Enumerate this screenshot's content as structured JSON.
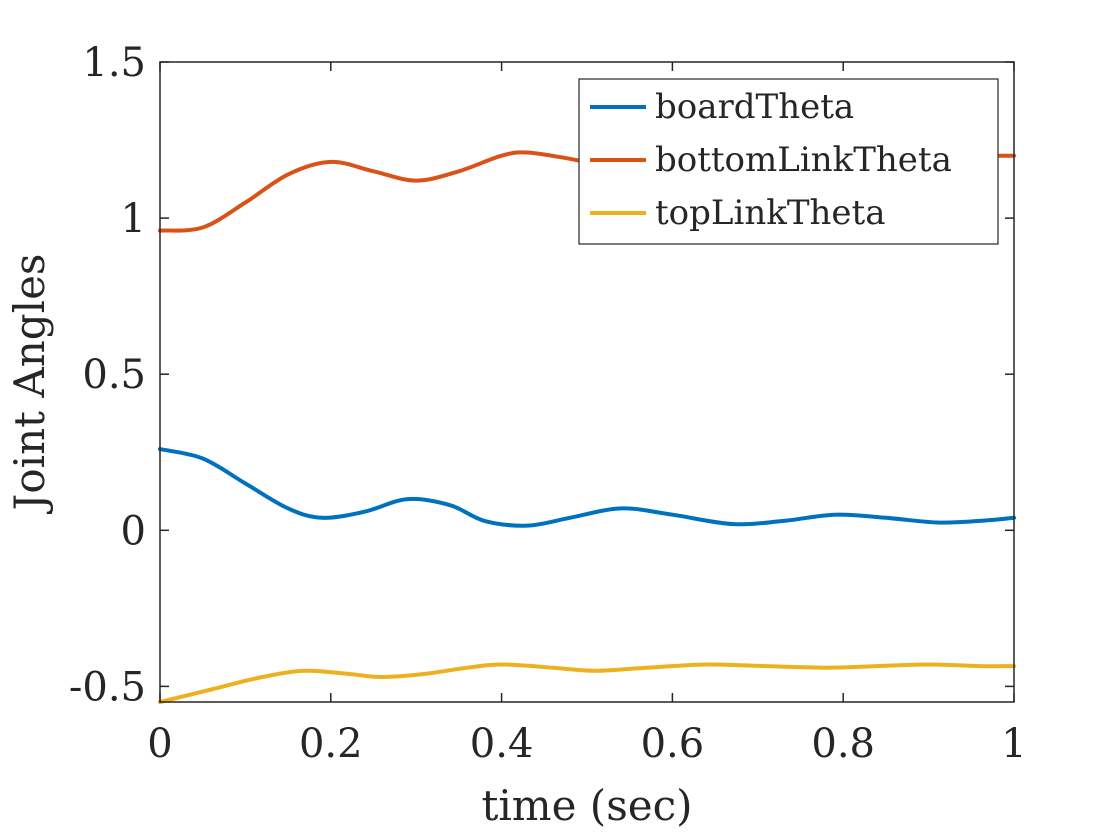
{
  "chart_data": {
    "type": "line",
    "xlabel": "time (sec)",
    "ylabel": "Joint Angles",
    "xlim": [
      0,
      1
    ],
    "ylim": [
      -0.55,
      1.5
    ],
    "xticks": [
      0,
      0.2,
      0.4,
      0.6,
      0.8,
      1
    ],
    "xtick_labels": [
      "0",
      "0.2",
      "0.4",
      "0.6",
      "0.8",
      "1"
    ],
    "yticks": [
      -0.5,
      0,
      0.5,
      1,
      1.5
    ],
    "ytick_labels": [
      "-0.5",
      "0",
      "0.5",
      "1",
      "1.5"
    ],
    "grid": false,
    "legend": "top-right",
    "series": [
      {
        "name": "boardTheta",
        "color": "#0072BD",
        "x": [
          0,
          0.05,
          0.1,
          0.15,
          0.19,
          0.24,
          0.29,
          0.34,
          0.38,
          0.43,
          0.48,
          0.54,
          0.6,
          0.67,
          0.73,
          0.79,
          0.85,
          0.91,
          0.96,
          1
        ],
        "y": [
          0.26,
          0.23,
          0.15,
          0.07,
          0.04,
          0.06,
          0.1,
          0.08,
          0.03,
          0.015,
          0.04,
          0.07,
          0.05,
          0.02,
          0.03,
          0.05,
          0.04,
          0.025,
          0.03,
          0.04
        ]
      },
      {
        "name": "bottomLinkTheta",
        "color": "#D95319",
        "x": [
          0,
          0.05,
          0.1,
          0.15,
          0.2,
          0.25,
          0.3,
          0.35,
          0.4,
          0.43,
          0.48,
          0.54,
          0.6,
          0.66,
          0.72,
          0.78,
          0.84,
          0.9,
          0.96,
          1
        ],
        "y": [
          0.96,
          0.97,
          1.05,
          1.14,
          1.18,
          1.15,
          1.12,
          1.15,
          1.2,
          1.21,
          1.19,
          1.16,
          1.18,
          1.2,
          1.19,
          1.18,
          1.19,
          1.2,
          1.2,
          1.2
        ]
      },
      {
        "name": "topLinkTheta",
        "color": "#EDB120",
        "x": [
          0,
          0.06,
          0.12,
          0.17,
          0.22,
          0.26,
          0.31,
          0.36,
          0.4,
          0.46,
          0.51,
          0.57,
          0.64,
          0.71,
          0.78,
          0.84,
          0.9,
          0.96,
          1
        ],
        "y": [
          -0.55,
          -0.51,
          -0.47,
          -0.45,
          -0.46,
          -0.47,
          -0.46,
          -0.44,
          -0.43,
          -0.44,
          -0.45,
          -0.44,
          -0.43,
          -0.435,
          -0.44,
          -0.435,
          -0.43,
          -0.435,
          -0.435
        ]
      }
    ]
  }
}
